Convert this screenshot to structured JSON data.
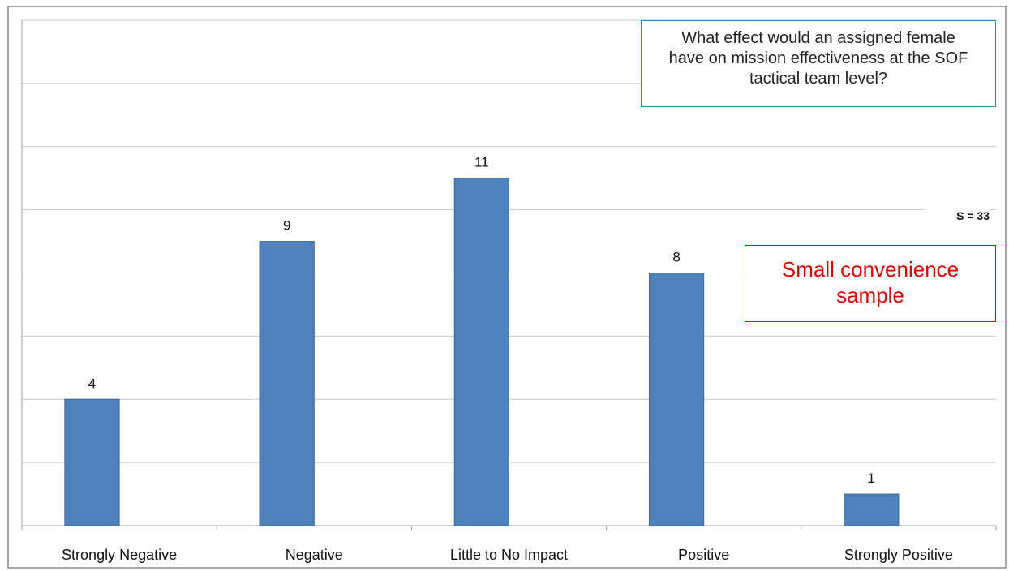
{
  "chart_data": {
    "type": "bar",
    "categories": [
      "Strongly Negative",
      "Negative",
      "Little to No Impact",
      "Positive",
      "Strongly Positive"
    ],
    "values": [
      4,
      9,
      11,
      8,
      1
    ],
    "color": "#4f81bd",
    "ylim": [
      0,
      16
    ],
    "yticks": [
      0,
      2,
      4,
      6,
      8,
      10,
      12,
      14,
      16
    ],
    "grid": true,
    "annotations": [
      "What effect would an assigned female have on mission effectiveness at the SOF tactical team level?",
      "S = 33",
      "Small convenience sample"
    ]
  }
}
